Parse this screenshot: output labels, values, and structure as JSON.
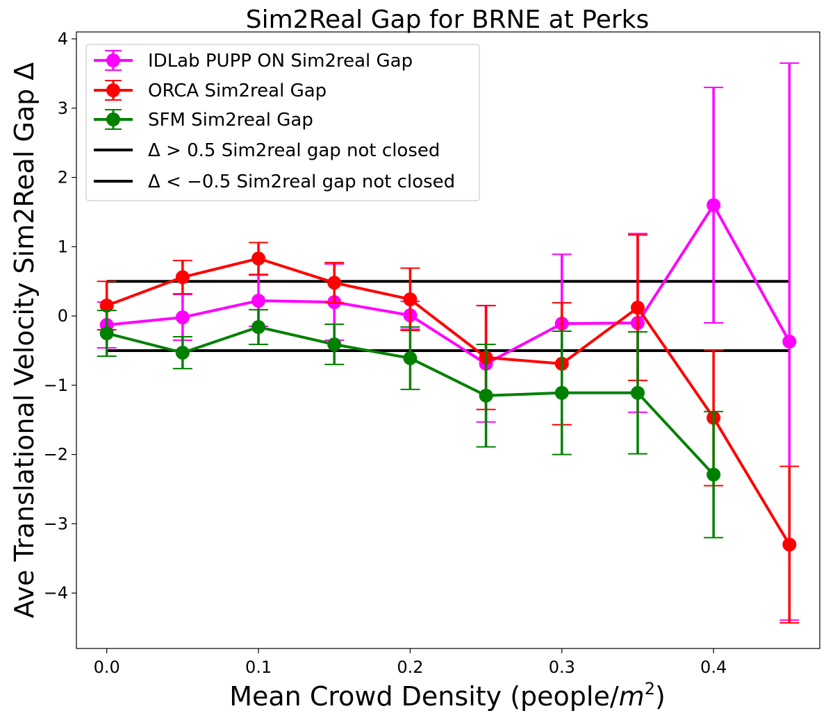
{
  "chart_data": {
    "type": "line",
    "title": "Sim2Real Gap for BRNE at Perks",
    "xlabel": "Mean Crowd Density (people/m²)",
    "xlabel_main": "Mean Crowd Density (people/",
    "xlabel_var": "m",
    "xlabel_sup": "2",
    "xlabel_close": ")",
    "ylabel": "Ave Translational Velocity Sim2Real Gap Δ",
    "xlim": [
      -0.02,
      0.47
    ],
    "ylim": [
      -4.8,
      4.1
    ],
    "xticks": [
      0.0,
      0.1,
      0.2,
      0.3,
      0.4
    ],
    "xtick_labels": [
      "0.0",
      "0.1",
      "0.2",
      "0.3",
      "0.4"
    ],
    "yticks": [
      4,
      3,
      2,
      1,
      0,
      -1,
      -2,
      -3,
      -4
    ],
    "ytick_labels": [
      "4",
      "3",
      "2",
      "1",
      "0",
      "−1",
      "−2",
      "−3",
      "−4"
    ],
    "grid": false,
    "legend_position": "top-left",
    "series": [
      {
        "name": "IDLab PUPP ON Sim2real Gap",
        "color": "#ff00ff",
        "x": [
          0.0,
          0.05,
          0.1,
          0.15,
          0.2,
          0.25,
          0.3,
          0.35,
          0.4,
          0.45
        ],
        "y": [
          -0.13,
          -0.02,
          0.22,
          0.2,
          0.01,
          -0.69,
          -0.11,
          -0.1,
          1.6,
          -0.37
        ],
        "err": [
          0.33,
          0.33,
          0.37,
          0.55,
          0.2,
          0.84,
          1.0,
          1.29,
          1.7,
          4.02
        ]
      },
      {
        "name": "ORCA Sim2real Gap",
        "color": "#ff0000",
        "x": [
          0.0,
          0.05,
          0.1,
          0.15,
          0.2,
          0.25,
          0.3,
          0.35,
          0.4,
          0.45
        ],
        "y": [
          0.15,
          0.56,
          0.83,
          0.48,
          0.24,
          -0.6,
          -0.69,
          0.12,
          -1.47,
          -3.3
        ],
        "err": [
          0.35,
          0.24,
          0.23,
          0.29,
          0.45,
          0.75,
          0.88,
          1.05,
          0.98,
          1.13
        ]
      },
      {
        "name": "SFM Sim2real Gap",
        "color": "#008000",
        "x": [
          0.0,
          0.05,
          0.1,
          0.15,
          0.2,
          0.25,
          0.3,
          0.35,
          0.4
        ],
        "y": [
          -0.25,
          -0.53,
          -0.16,
          -0.41,
          -0.61,
          -1.15,
          -1.11,
          -1.11,
          -2.29
        ],
        "err": [
          0.33,
          0.23,
          0.25,
          0.29,
          0.45,
          0.74,
          0.89,
          0.88,
          0.91
        ]
      }
    ],
    "hlines": [
      {
        "name": "Δ > 0.5 Sim2real gap not closed",
        "y": 0.5,
        "color": "#000000"
      },
      {
        "name": "Δ < −0.5 Sim2real gap not closed",
        "y": -0.5,
        "color": "#000000"
      }
    ]
  }
}
